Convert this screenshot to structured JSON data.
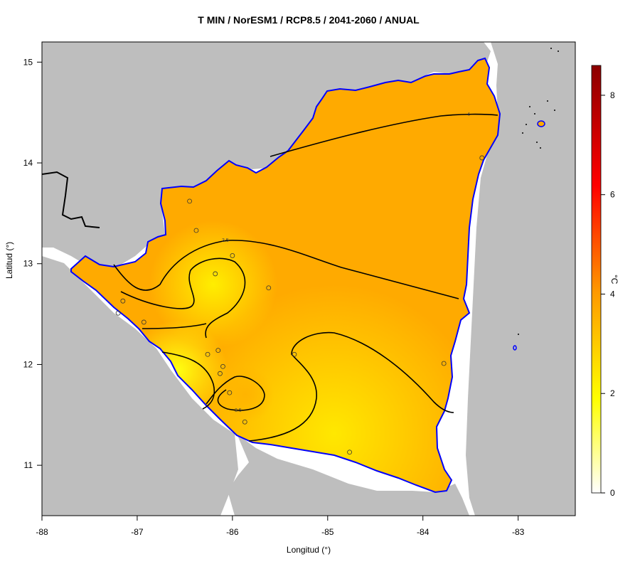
{
  "title": "T MIN / NorESM1 / RCP8.5 / 2041-2060 / ANUAL",
  "xlabel": "Longitud (°)",
  "ylabel": "Latitud (°)",
  "colorbar_unit": "°C",
  "chart_data": {
    "type": "heatmap",
    "title": "T MIN / NorESM1 / RCP8.5 / 2041-2060 / ANUAL",
    "xlabel": "Longitud (°)",
    "ylabel": "Latitud (°)",
    "xlim": [
      -88,
      -82.4
    ],
    "ylim": [
      10.5,
      15.2
    ],
    "x_ticks": [
      -88,
      -87,
      -86,
      -85,
      -84,
      -83
    ],
    "y_ticks": [
      11,
      12,
      13,
      14,
      15
    ],
    "colorbar": {
      "min": 0,
      "max": 8.6,
      "ticks": [
        0,
        2,
        4,
        6,
        8
      ],
      "unit": "°C",
      "colors": [
        "#ffffff",
        "#ffff00",
        "#ff8c00",
        "#ff0000",
        "#8b0000"
      ]
    },
    "colors": {
      "land_outside": "#bebebe",
      "coast": "#0000ff",
      "border": "#000000"
    },
    "contour_labels": [
      "3.5",
      "3.5",
      "4"
    ],
    "stations": [
      {
        "lon": -86.45,
        "lat": 13.62
      },
      {
        "lon": -86.38,
        "lat": 13.33
      },
      {
        "lon": -86.0,
        "lat": 13.08
      },
      {
        "lon": -86.18,
        "lat": 12.9
      },
      {
        "lon": -85.62,
        "lat": 12.76
      },
      {
        "lon": -87.15,
        "lat": 12.63
      },
      {
        "lon": -87.2,
        "lat": 12.51
      },
      {
        "lon": -86.93,
        "lat": 12.42
      },
      {
        "lon": -86.26,
        "lat": 12.1
      },
      {
        "lon": -86.15,
        "lat": 12.14
      },
      {
        "lon": -85.35,
        "lat": 12.1
      },
      {
        "lon": -86.1,
        "lat": 11.98
      },
      {
        "lon": -86.13,
        "lat": 11.91
      },
      {
        "lon": -86.03,
        "lat": 11.72
      },
      {
        "lon": -85.87,
        "lat": 11.43
      },
      {
        "lon": -84.77,
        "lat": 11.13
      },
      {
        "lon": -83.78,
        "lat": 12.01
      },
      {
        "lon": -83.38,
        "lat": 14.05
      }
    ]
  }
}
